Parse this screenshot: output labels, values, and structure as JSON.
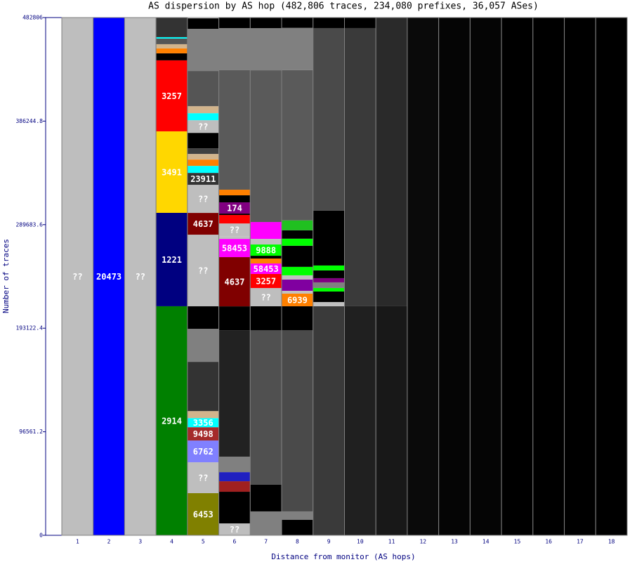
{
  "chart_data": {
    "type": "stacked-column",
    "title": "AS dispersion by AS hop (482,806 traces, 234,080 prefixes, 36,057 ASes)",
    "x_label": "Distance from monitor (AS hops)",
    "y_label": "Number of traces",
    "categories": [
      "1",
      "2",
      "3",
      "4",
      "5",
      "6",
      "7",
      "8",
      "9",
      "10",
      "11",
      "12",
      "13",
      "14",
      "15",
      "16",
      "17",
      "18"
    ],
    "ylim": [
      0,
      482806
    ],
    "yticks": [
      0,
      96561.2,
      193122.4,
      289683.6,
      386244.8,
      482806
    ],
    "columns": [
      {
        "segments": [
          {
            "color": "#bebebe",
            "value": 482806,
            "label": "??"
          }
        ]
      },
      {
        "segments": [
          {
            "color": "#0000ff",
            "value": 482806,
            "label": "20473"
          }
        ]
      },
      {
        "segments": [
          {
            "color": "#bebebe",
            "value": 482806,
            "label": "??"
          }
        ]
      },
      {
        "segments": [
          {
            "color": "#008000",
            "value": 213600,
            "label": "2914"
          },
          {
            "color": "#000080",
            "value": 87100,
            "label": "1221"
          },
          {
            "color": "#ffd700",
            "value": 76000,
            "label": "3491"
          },
          {
            "color": "#ff0000",
            "value": 66200,
            "label": "3257"
          },
          {
            "color": "#000000",
            "value": 6550
          },
          {
            "color": "#ff8000",
            "value": 4590
          },
          {
            "color": "#d2b48c",
            "value": 3930
          },
          {
            "color": "#555555",
            "value": 5240
          },
          {
            "color": "#00ffff",
            "value": 1310
          },
          {
            "color": "#333333",
            "value": 18340
          }
        ]
      },
      {
        "segments": [
          {
            "color": "#808000",
            "value": 39300,
            "label": "6453"
          },
          {
            "color": "#bebebe",
            "value": 28800,
            "label": "??"
          },
          {
            "color": "#8080ff",
            "value": 20300,
            "label": "6762"
          },
          {
            "color": "#a52a2a",
            "value": 12400,
            "label": "9498"
          },
          {
            "color": "#00ffff",
            "value": 8500,
            "label": "3356"
          },
          {
            "color": "#d2b48c",
            "value": 6550
          },
          {
            "color": "#333333",
            "value": 45900
          },
          {
            "color": "#808080",
            "value": 30800
          },
          {
            "color": "#000000",
            "value": 21000
          },
          {
            "color": "#bebebe",
            "value": 66800,
            "label": "??"
          },
          {
            "color": "#800000",
            "value": 20300,
            "label": "4637"
          },
          {
            "color": "#bebebe",
            "value": 26200,
            "label": "??"
          },
          {
            "color": "#333333",
            "value": 11100,
            "label": "23911"
          },
          {
            "color": "#00ffff",
            "value": 6550
          },
          {
            "color": "#ff8000",
            "value": 5900
          },
          {
            "color": "#d2b48c",
            "value": 5240
          },
          {
            "color": "#404040",
            "value": 5240
          },
          {
            "color": "#000000",
            "value": 14400
          },
          {
            "color": "#bebebe",
            "value": 11800,
            "label": "??"
          },
          {
            "color": "#00ffff",
            "value": 6550
          },
          {
            "color": "#d2b48c",
            "value": 6550
          },
          {
            "color": "#555555",
            "value": 32800
          },
          {
            "color": "#808080",
            "value": 39300
          },
          {
            "color": "#000000",
            "value": 9800
          }
        ]
      },
      {
        "segments": [
          {
            "color": "#bebebe",
            "value": 11100,
            "label": "??"
          },
          {
            "color": "#000000",
            "value": 29500
          },
          {
            "color": "#a02020",
            "value": 9800
          },
          {
            "color": "#2020c0",
            "value": 8500
          },
          {
            "color": "#808080",
            "value": 14400
          },
          {
            "color": "#222222",
            "value": 117900
          },
          {
            "color": "#000000",
            "value": 22300
          },
          {
            "color": "#800000",
            "value": 45900,
            "label": "4637"
          },
          {
            "color": "#ff00ff",
            "value": 17000,
            "label": "58453"
          },
          {
            "color": "#c0c0c0",
            "value": 2600
          },
          {
            "color": "#bebebe",
            "value": 11800,
            "label": "??"
          },
          {
            "color": "#ff0000",
            "value": 7900
          },
          {
            "color": "#000000",
            "value": 1300
          },
          {
            "color": "#800080",
            "value": 10500,
            "label": "174"
          },
          {
            "color": "#000000",
            "value": 6550
          },
          {
            "color": "#ff8000",
            "value": 5240
          },
          {
            "color": "#5a5a5a",
            "value": 111400
          },
          {
            "color": "#808080",
            "value": 39300
          },
          {
            "color": "#000000",
            "value": 9800
          }
        ]
      },
      {
        "segments": [
          {
            "color": "#808080",
            "value": 22300
          },
          {
            "color": "#000000",
            "value": 24900
          },
          {
            "color": "#505050",
            "value": 144100
          },
          {
            "color": "#000000",
            "value": 22300
          },
          {
            "color": "#bebebe",
            "value": 17000,
            "label": "??"
          },
          {
            "color": "#ff0000",
            "value": 13100,
            "label": "3257"
          },
          {
            "color": "#ff00ff",
            "value": 9800,
            "label": "58453"
          },
          {
            "color": "#ff8000",
            "value": 4600
          },
          {
            "color": "#000000",
            "value": 2600
          },
          {
            "color": "#00ff00",
            "value": 10500,
            "label": "9888"
          },
          {
            "color": "#c0c0c0",
            "value": 5240
          },
          {
            "color": "#ff00ff",
            "value": 15700
          },
          {
            "color": "#5a5a5a",
            "value": 141500
          },
          {
            "color": "#808080",
            "value": 39300
          },
          {
            "color": "#000000",
            "value": 9800
          }
        ]
      },
      {
        "segments": [
          {
            "color": "#000000",
            "value": 14400
          },
          {
            "color": "#808080",
            "value": 7900
          },
          {
            "color": "#4a4a4a",
            "value": 169000
          },
          {
            "color": "#000000",
            "value": 22300
          },
          {
            "color": "#ff8000",
            "value": 11800,
            "label": "6939"
          },
          {
            "color": "#c0c0c0",
            "value": 2600
          },
          {
            "color": "#8000a0",
            "value": 10500
          },
          {
            "color": "#c0c0c0",
            "value": 3930
          },
          {
            "color": "#00ff00",
            "value": 7900
          },
          {
            "color": "#000000",
            "value": 19700
          },
          {
            "color": "#00ff00",
            "value": 6550
          },
          {
            "color": "#000000",
            "value": 7900
          },
          {
            "color": "#20c020",
            "value": 9200
          },
          {
            "color": "#5a5a5a",
            "value": 140200
          },
          {
            "color": "#808080",
            "value": 39300
          },
          {
            "color": "#000000",
            "value": 9800
          }
        ]
      },
      {
        "segments": [
          {
            "color": "#3a3a3a",
            "value": 213600
          },
          {
            "color": "#c0c0c0",
            "value": 3930
          },
          {
            "color": "#000000",
            "value": 9800
          },
          {
            "color": "#00ff00",
            "value": 3300
          },
          {
            "color": "#808080",
            "value": 5240
          },
          {
            "color": "#800080",
            "value": 3930
          },
          {
            "color": "#000000",
            "value": 7200
          },
          {
            "color": "#00ff00",
            "value": 4600
          },
          {
            "color": "#000000",
            "value": 51100
          },
          {
            "color": "#4a4a4a",
            "value": 170300
          },
          {
            "color": "#000000",
            "value": 9800
          }
        ]
      },
      {
        "segments": [
          {
            "color": "#202020",
            "value": 213600
          },
          {
            "color": "#3a3a3a",
            "value": 259400
          },
          {
            "color": "#000000",
            "value": 9800
          }
        ]
      },
      {
        "segments": [
          {
            "color": "#181818",
            "value": 213600
          },
          {
            "color": "#2a2a2a",
            "value": 269200
          }
        ]
      },
      {
        "segments": [
          {
            "color": "#0a0a0a",
            "value": 482806
          }
        ]
      },
      {
        "segments": [
          {
            "color": "#050505",
            "value": 482806
          }
        ]
      },
      {
        "segments": [
          {
            "color": "#050505",
            "value": 482806
          }
        ]
      },
      {
        "segments": [
          {
            "color": "#000000",
            "value": 482806
          }
        ]
      },
      {
        "segments": [
          {
            "color": "#000000",
            "value": 482806
          }
        ]
      },
      {
        "segments": [
          {
            "color": "#000000",
            "value": 482806
          }
        ]
      },
      {
        "segments": [
          {
            "color": "#000000",
            "value": 482806
          }
        ]
      }
    ]
  }
}
